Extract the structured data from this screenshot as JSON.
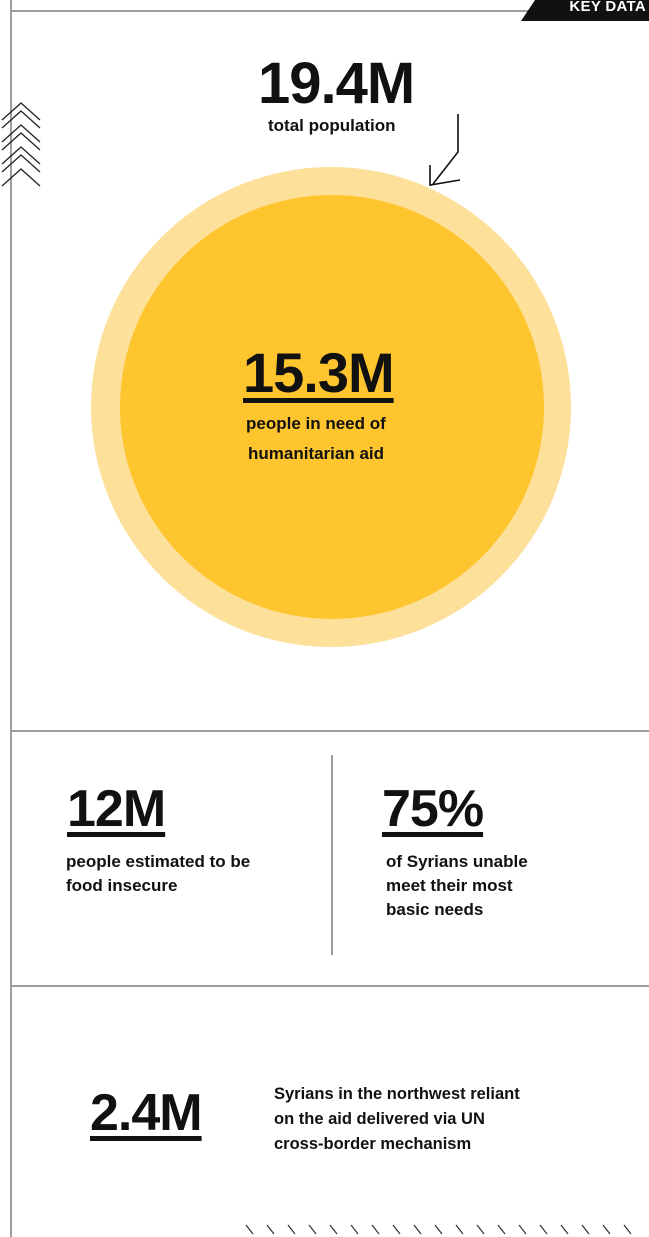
{
  "header": {
    "tag": "KEY DATA"
  },
  "population": {
    "value": "19.4M",
    "label": "total population"
  },
  "need": {
    "value": "15.3M",
    "label_line1": "people in need of",
    "label_line2": "humanitarian aid"
  },
  "food": {
    "value": "12M",
    "label_line1": "people estimated to be",
    "label_line2": "food insecure"
  },
  "needs": {
    "value": "75%",
    "label_line1": "of Syrians unable",
    "label_line2": "meet their most",
    "label_line3": "basic needs"
  },
  "crossborder": {
    "value": "2.4M",
    "label_line1": "Syrians in the northwest reliant",
    "label_line2": "on the aid delivered via UN",
    "label_line3": "cross-border mechanism"
  },
  "colors": {
    "outer_circle": "#fde09a",
    "inner_circle": "#fec52e",
    "frame": "#9e9e9e",
    "tag_bg": "#111111"
  }
}
